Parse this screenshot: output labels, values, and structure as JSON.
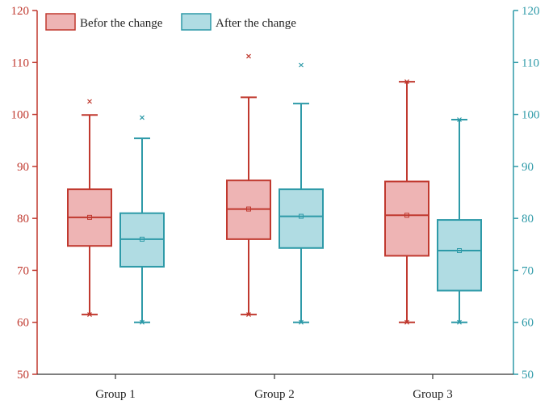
{
  "chart_data": {
    "type": "boxplot",
    "title": "",
    "xlabel": "",
    "ylabel": "",
    "categories": [
      "Group 1",
      "Group 2",
      "Group 3"
    ],
    "ylim": [
      50,
      120
    ],
    "yticks": [
      50,
      60,
      70,
      80,
      90,
      100,
      110,
      120
    ],
    "grid": false,
    "legend_position": "top-left",
    "series": [
      {
        "name": "Befor the change",
        "color": "#c0392f",
        "fill": "#eeb4b4",
        "boxes": [
          {
            "whisker_low": 61.5,
            "q1": 74.7,
            "median": 80.2,
            "q3": 85.6,
            "whisker_high": 99.9,
            "mean": 80.2,
            "outliers": [
              102.5
            ]
          },
          {
            "whisker_low": 61.5,
            "q1": 76.0,
            "median": 81.8,
            "q3": 87.3,
            "whisker_high": 103.3,
            "mean": 81.8,
            "outliers": [
              111.2
            ]
          },
          {
            "whisker_low": 60.0,
            "q1": 72.8,
            "median": 80.6,
            "q3": 87.1,
            "whisker_high": 106.3,
            "mean": 80.6,
            "outliers": [
              106.3
            ]
          }
        ]
      },
      {
        "name": "After the change",
        "color": "#2e9aa8",
        "fill": "#b0dce3",
        "boxes": [
          {
            "whisker_low": 60.0,
            "q1": 70.7,
            "median": 76.0,
            "q3": 81.0,
            "whisker_high": 95.4,
            "mean": 76.0,
            "outliers": [
              99.4
            ]
          },
          {
            "whisker_low": 60.0,
            "q1": 74.3,
            "median": 80.4,
            "q3": 85.6,
            "whisker_high": 102.1,
            "mean": 80.4,
            "outliers": [
              109.5
            ]
          },
          {
            "whisker_low": 60.0,
            "q1": 66.1,
            "median": 73.8,
            "q3": 79.7,
            "whisker_high": 99.0,
            "mean": 73.8,
            "outliers": [
              99.0
            ]
          }
        ]
      }
    ]
  },
  "colors": {
    "left_axis": "#c0392f",
    "right_axis": "#2e9aa8",
    "bottom_axis": "#333333"
  }
}
